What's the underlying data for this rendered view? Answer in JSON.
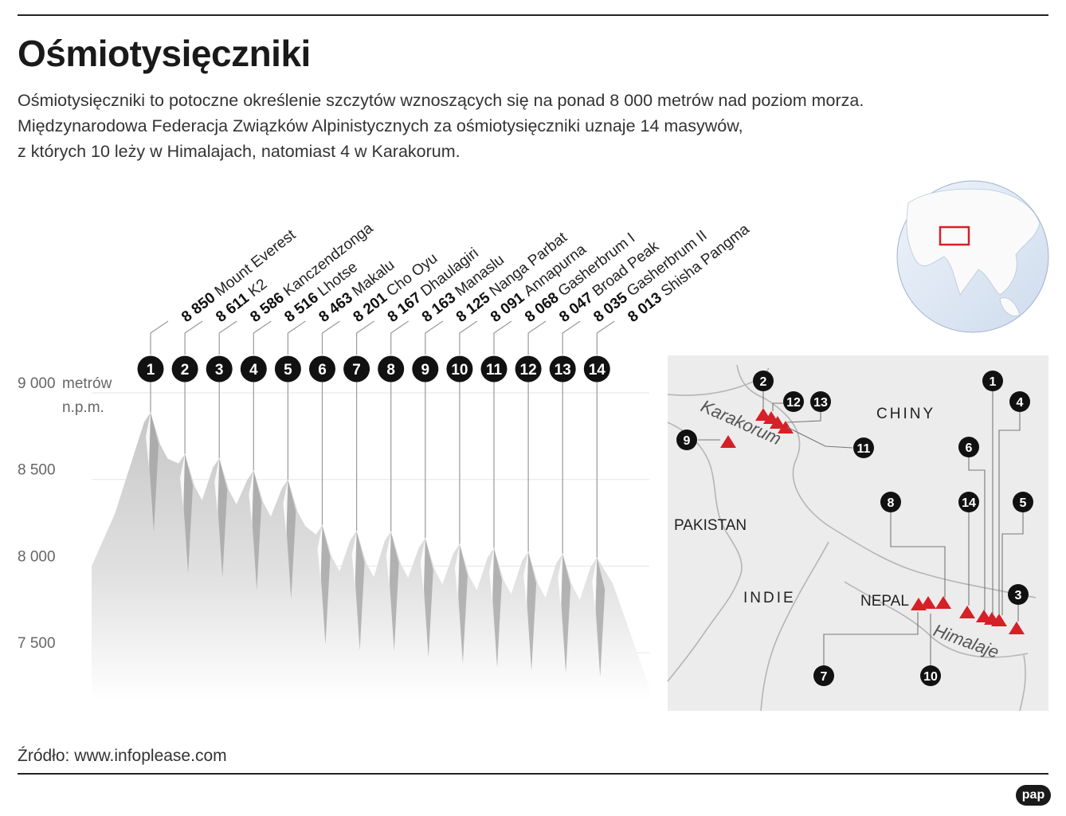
{
  "title": "Ośmiotysięczniki",
  "description": [
    "Ośmiotysięczniki to potoczne określenie szczytów wznoszących się na ponad 8 000 metrów nad poziom morza.",
    "Międzynarodowa Federacja Związków Alpinistycznych za ośmiotysięczniki uznaje 14 masywów,",
    "z których 10 leży w Himalajach, natomiast 4 w Karakorum."
  ],
  "source": "Źródło: www.infoplease.com",
  "logo": "pap",
  "chart_data": {
    "type": "area",
    "y_unit_label": [
      "metrów",
      "n.p.m."
    ],
    "ylim": [
      7250,
      9100
    ],
    "yticks": [
      {
        "value": 9000,
        "label": "9 000"
      },
      {
        "value": 8500,
        "label": "8 500"
      },
      {
        "value": 8000,
        "label": "8 000"
      },
      {
        "value": 7500,
        "label": "7 500"
      }
    ],
    "peaks": [
      {
        "n": "1",
        "name": "Mount Everest",
        "height": 8850,
        "height_label": "8 850"
      },
      {
        "n": "2",
        "name": "K2",
        "height": 8611,
        "height_label": "8 611"
      },
      {
        "n": "3",
        "name": "Kanczendzonga",
        "height": 8586,
        "height_label": "8 586"
      },
      {
        "n": "4",
        "name": "Lhotse",
        "height": 8516,
        "height_label": "8 516"
      },
      {
        "n": "5",
        "name": "Makalu",
        "height": 8463,
        "height_label": "8 463"
      },
      {
        "n": "6",
        "name": "Cho Oyu",
        "height": 8201,
        "height_label": "8 201"
      },
      {
        "n": "7",
        "name": "Dhaulagiri",
        "height": 8167,
        "height_label": "8 167"
      },
      {
        "n": "8",
        "name": "Manaslu",
        "height": 8163,
        "height_label": "8 163"
      },
      {
        "n": "9",
        "name": "Nanga Parbat",
        "height": 8125,
        "height_label": "8 125"
      },
      {
        "n": "10",
        "name": "Annapurna",
        "height": 8091,
        "height_label": "8 091"
      },
      {
        "n": "11",
        "name": "Gasherbrum I",
        "height": 8068,
        "height_label": "8 068"
      },
      {
        "n": "12",
        "name": "Broad Peak",
        "height": 8047,
        "height_label": "8 047"
      },
      {
        "n": "13",
        "name": "Gasherbrum II",
        "height": 8035,
        "height_label": "8 035"
      },
      {
        "n": "14",
        "name": "Shisha Pangma",
        "height": 8013,
        "height_label": "8 013"
      }
    ]
  },
  "map": {
    "country_labels": [
      "CHINY",
      "PAKISTAN",
      "INDIE",
      "NEPAL"
    ],
    "range_labels": [
      "Karakorum",
      "Himalaje"
    ],
    "accent_color": "#d62027"
  }
}
